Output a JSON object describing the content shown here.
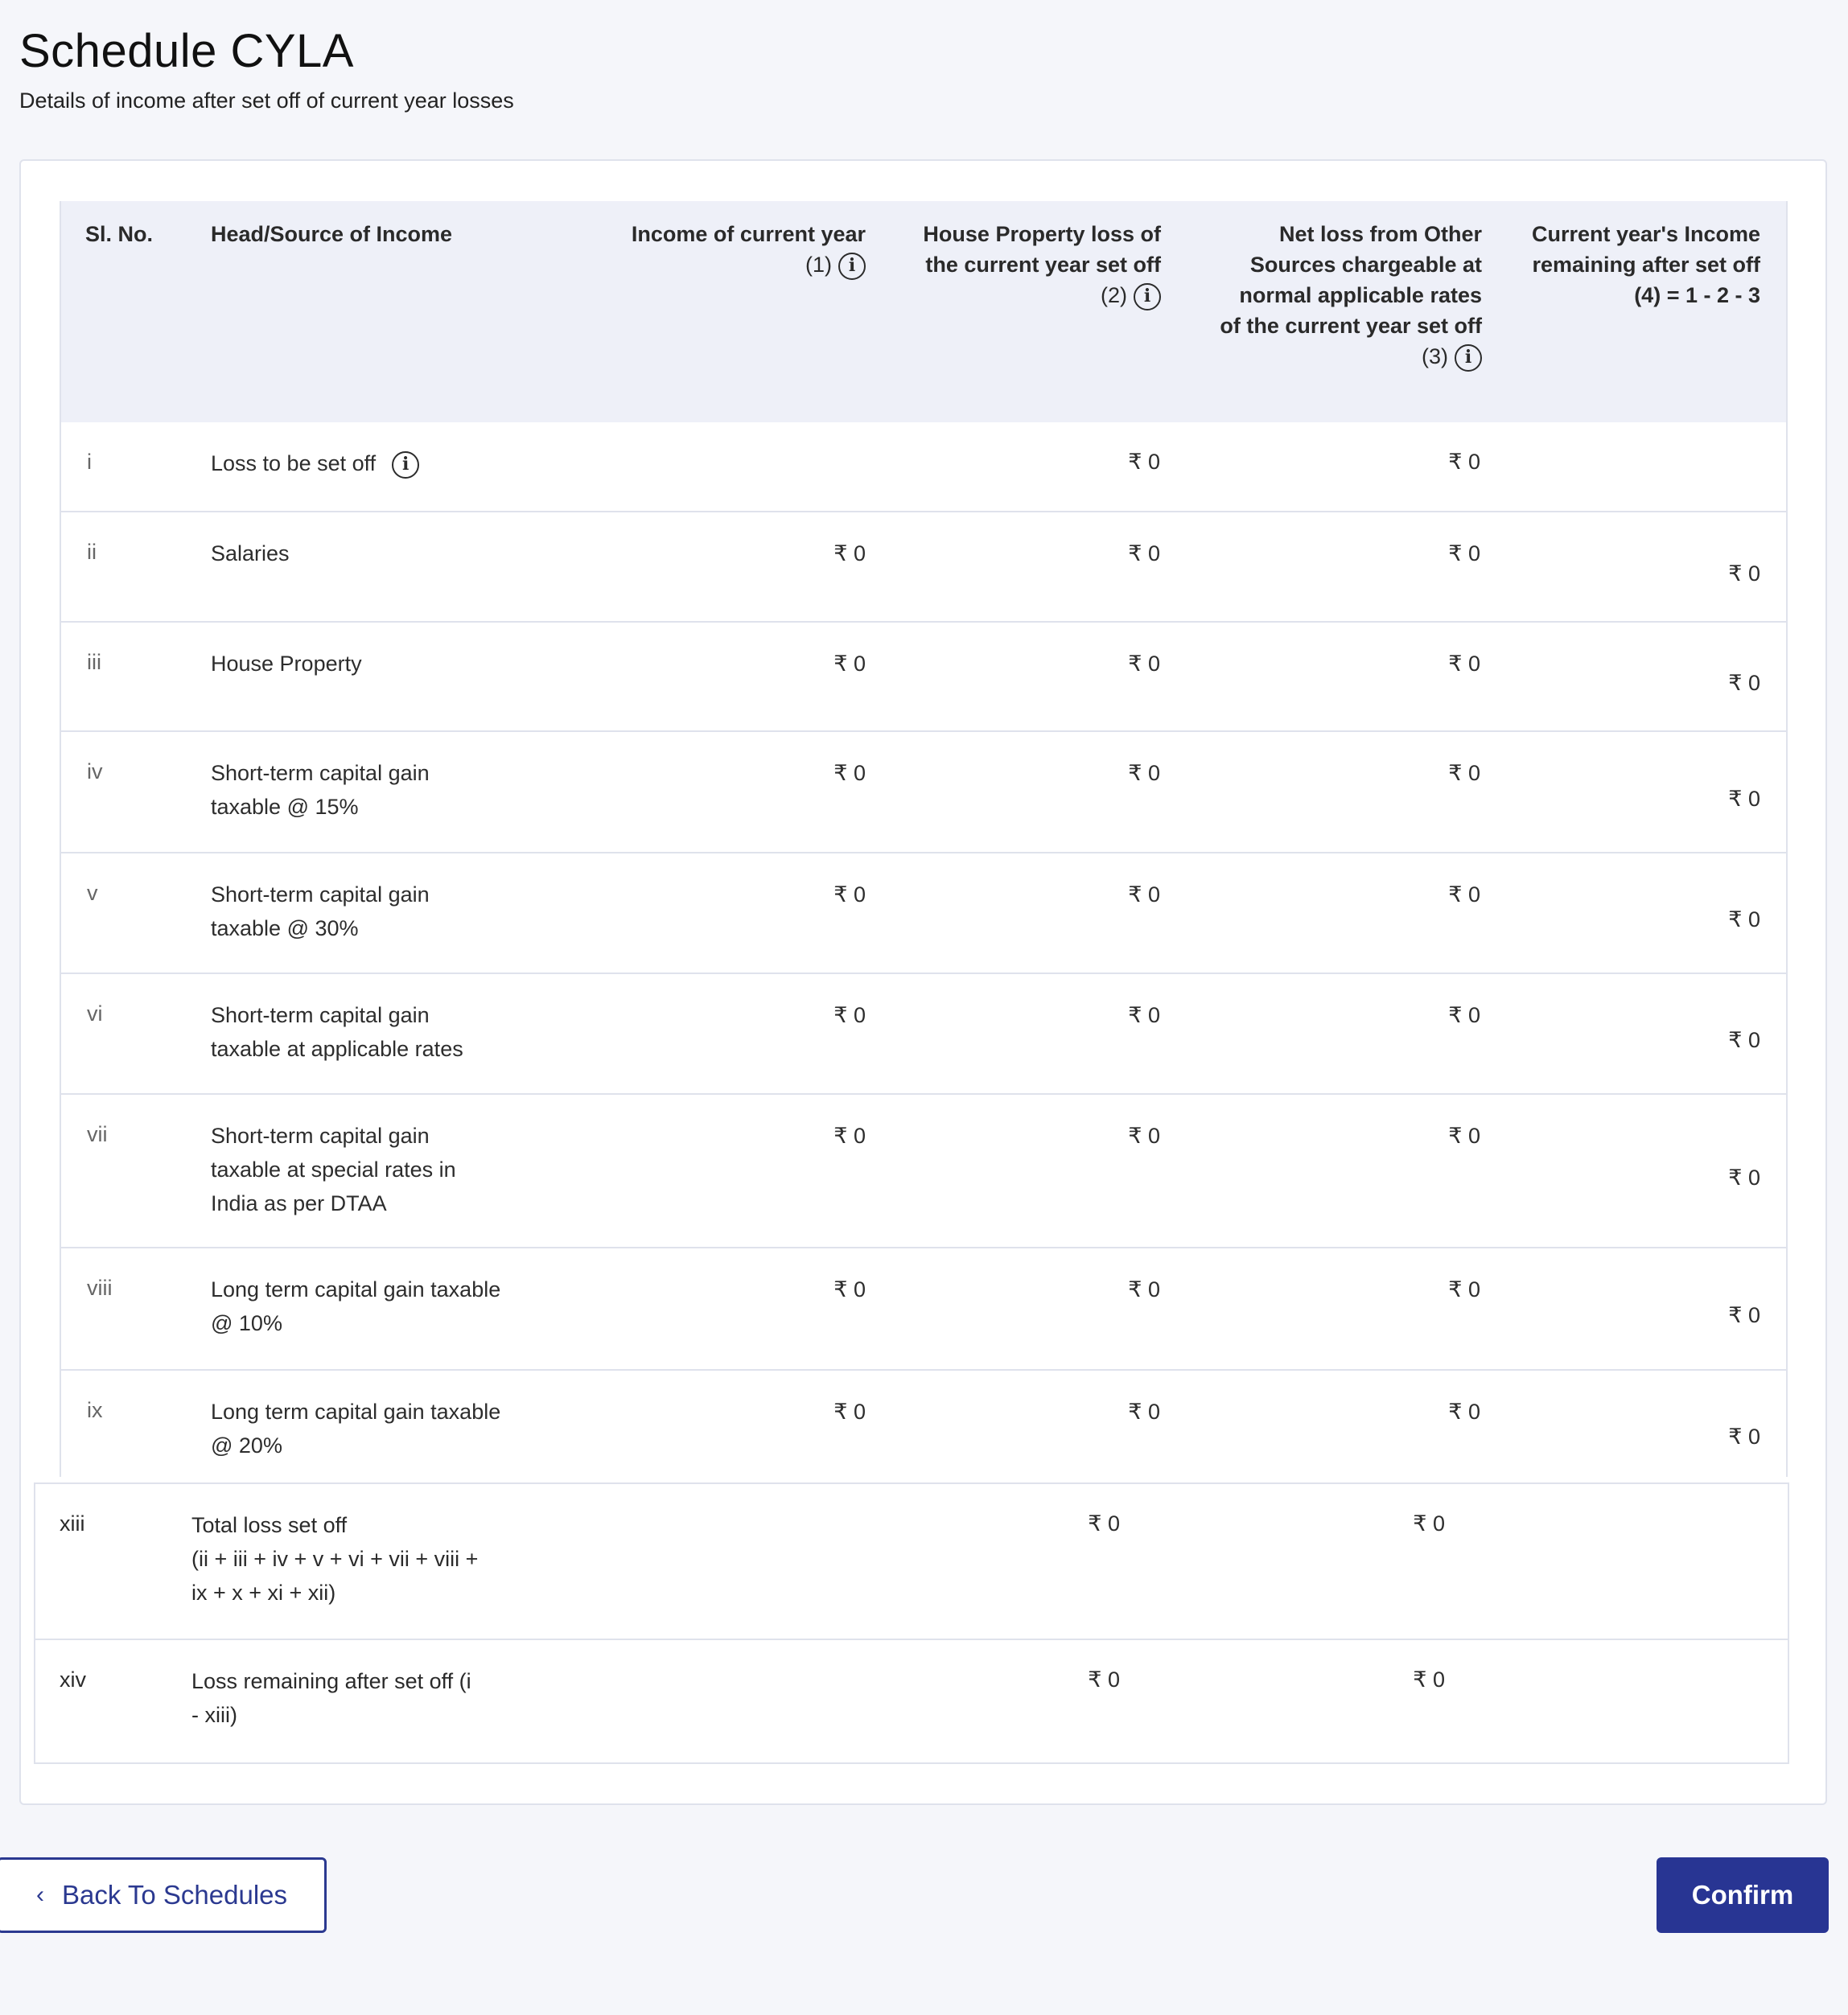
{
  "header": {
    "title": "Schedule CYLA",
    "subtitle": "Details of income after set off of current year losses"
  },
  "table": {
    "columns": {
      "sl": "Sl. No.",
      "head": "Head/Source of Income",
      "c1_line1": "Income of current year",
      "c1_line2": "(1)",
      "c2_line1": "House Property loss of",
      "c2_line2": "the current year set off",
      "c2_line3": "(2)",
      "c3_line1": "Net loss from Other",
      "c3_line2": "Sources chargeable at",
      "c3_line3": "normal applicable rates",
      "c3_line4": "of the current year set off",
      "c3_line5": "(3)",
      "c4_line1": "Current year's Income",
      "c4_line2": "remaining after set off",
      "c4_line3": "(4) = 1 - 2 - 3"
    },
    "rows": [
      {
        "sl": "i",
        "l1": "Loss to be set off",
        "l2": "",
        "l3": "",
        "c1": "",
        "c2": "₹ 0",
        "c3": "₹ 0",
        "c4": ""
      },
      {
        "sl": "ii",
        "l1": "Salaries",
        "l2": "",
        "l3": "",
        "c1": "₹ 0",
        "c2": "₹ 0",
        "c3": "₹ 0",
        "c4": "₹ 0"
      },
      {
        "sl": "iii",
        "l1": "House Property",
        "l2": "",
        "l3": "",
        "c1": "₹ 0",
        "c2": "₹ 0",
        "c3": "₹ 0",
        "c4": "₹ 0"
      },
      {
        "sl": "iv",
        "l1": "Short-term capital gain",
        "l2": "taxable @ 15%",
        "l3": "",
        "c1": "₹ 0",
        "c2": "₹ 0",
        "c3": "₹ 0",
        "c4": "₹ 0"
      },
      {
        "sl": "v",
        "l1": "Short-term capital gain",
        "l2": "taxable @ 30%",
        "l3": "",
        "c1": "₹ 0",
        "c2": "₹ 0",
        "c3": "₹ 0",
        "c4": "₹ 0"
      },
      {
        "sl": "vi",
        "l1": "Short-term capital gain",
        "l2": "taxable at applicable rates",
        "l3": "",
        "c1": "₹ 0",
        "c2": "₹ 0",
        "c3": "₹ 0",
        "c4": "₹ 0"
      },
      {
        "sl": "vii",
        "l1": "Short-term capital gain",
        "l2": "taxable at special rates in",
        "l3": "India as per DTAA",
        "c1": "₹ 0",
        "c2": "₹ 0",
        "c3": "₹ 0",
        "c4": "₹ 0"
      },
      {
        "sl": "viii",
        "l1": "Long term capital gain taxable",
        "l2": "@ 10%",
        "l3": "",
        "c1": "₹ 0",
        "c2": "₹ 0",
        "c3": "₹ 0",
        "c4": "₹ 0"
      },
      {
        "sl": "ix",
        "l1": "Long term capital gain taxable",
        "l2": "@ 20%",
        "l3": "",
        "c1": "₹ 0",
        "c2": "₹ 0",
        "c3": "₹ 0",
        "c4": "₹ 0"
      }
    ],
    "totals": [
      {
        "sl": "xiii",
        "l1": "Total loss set off",
        "l2": "(ii + iii + iv + v + vi + vii + viii +",
        "l3": "ix + x + xi + xii)",
        "c2": "₹ 0",
        "c3": "₹ 0"
      },
      {
        "sl": "xiv",
        "l1": "Loss remaining after set off (i",
        "l2": "- xiii)",
        "l3": "",
        "c2": "₹ 0",
        "c3": "₹ 0"
      }
    ]
  },
  "footer": {
    "back_label": "Back To Schedules",
    "confirm_label": "Confirm"
  }
}
